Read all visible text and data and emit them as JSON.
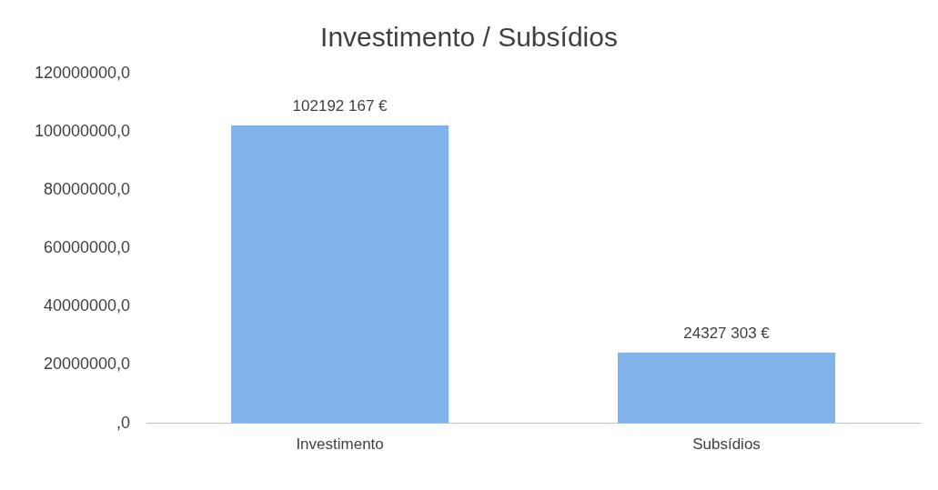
{
  "chart_data": {
    "type": "bar",
    "title": "Investimento / Subsídios",
    "categories": [
      "Investimento",
      "Subsídios"
    ],
    "values": [
      102192167,
      24327303
    ],
    "color": "#7fb3ea",
    "value_labels": [
      "102192 167 €",
      "24327 303 €"
    ],
    "ylim": [
      0,
      120000000
    ],
    "yticks": [
      {
        "value": 0,
        "label": ",0"
      },
      {
        "value": 20000000,
        "label": "20000000,0"
      },
      {
        "value": 40000000,
        "label": "40000000,0"
      },
      {
        "value": 60000000,
        "label": "60000000,0"
      },
      {
        "value": 80000000,
        "label": "80000000,0"
      },
      {
        "value": 100000000,
        "label": "100000000,0"
      },
      {
        "value": 120000000,
        "label": "120000000,0"
      }
    ],
    "grid": false,
    "legend": false
  }
}
